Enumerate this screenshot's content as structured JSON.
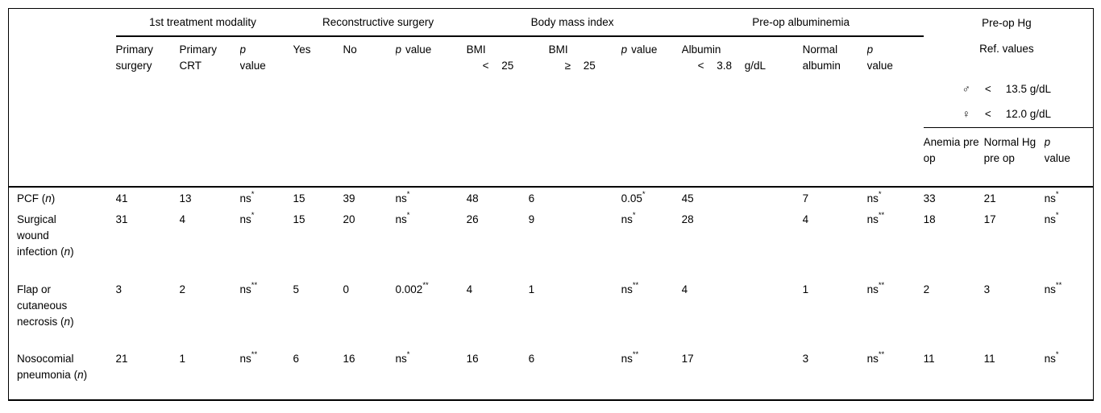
{
  "meta": {
    "background_color": "#ffffff",
    "text_color": "#000000",
    "rule_color": "#000000"
  },
  "table": {
    "groups": [
      {
        "label": "1st treatment modality"
      },
      {
        "label": "Reconstructive surgery"
      },
      {
        "label": "Body mass index"
      },
      {
        "label": "Pre-op albuminemia"
      },
      {
        "label": "Pre-op Hg"
      }
    ],
    "sub": {
      "primary_surgery": "Primary surgery",
      "primary_crt": "Primary CRT",
      "p1": {
        "p": "p",
        "value": "value"
      },
      "yes": "Yes",
      "no": "No",
      "p2": {
        "p": "p",
        "value": "value"
      },
      "bmi_lt": {
        "line1": "BMI",
        "line2": "< 25"
      },
      "bmi_ge": {
        "line1": "BMI",
        "line2": "≥ 25"
      },
      "p3": {
        "p": "p",
        "value": "value"
      },
      "albumin": {
        "line1": "Albumin",
        "line2": "< 3.8 g/dL"
      },
      "normal_albumin": "Normal albumin",
      "p4": {
        "p": "p",
        "value": "value"
      },
      "ref_values": "Ref. values",
      "male": {
        "symbol": "♂",
        "op": "<",
        "value": "13.5 g/dL"
      },
      "female": {
        "symbol": "♀",
        "op": "<",
        "value": "12.0 g/dL"
      },
      "anemia": "Anemia pre op",
      "normal_hg": "Normal Hg pre op",
      "p5": {
        "p": "p",
        "value": "value"
      }
    },
    "rows": [
      {
        "label": "PCF",
        "n": "(n)",
        "cells": [
          {
            "v": "41",
            "s": ""
          },
          {
            "v": "13",
            "s": ""
          },
          {
            "v": "ns",
            "s": "*"
          },
          {
            "v": "15",
            "s": ""
          },
          {
            "v": "39",
            "s": ""
          },
          {
            "v": "ns",
            "s": "*"
          },
          {
            "v": "48",
            "s": ""
          },
          {
            "v": "6",
            "s": ""
          },
          {
            "v": "0.05",
            "s": "*"
          },
          {
            "v": "45",
            "s": ""
          },
          {
            "v": "7",
            "s": ""
          },
          {
            "v": "ns",
            "s": "*"
          },
          {
            "v": "33",
            "s": ""
          },
          {
            "v": "21",
            "s": ""
          },
          {
            "v": "ns",
            "s": "*"
          }
        ]
      },
      {
        "label": "Surgical wound infection",
        "n": "(n)",
        "cells": [
          {
            "v": "31",
            "s": ""
          },
          {
            "v": "4",
            "s": ""
          },
          {
            "v": "ns",
            "s": "*"
          },
          {
            "v": "15",
            "s": ""
          },
          {
            "v": "20",
            "s": ""
          },
          {
            "v": "ns",
            "s": "*"
          },
          {
            "v": "26",
            "s": ""
          },
          {
            "v": "9",
            "s": ""
          },
          {
            "v": "ns",
            "s": "*"
          },
          {
            "v": "28",
            "s": ""
          },
          {
            "v": "4",
            "s": ""
          },
          {
            "v": "ns",
            "s": "**"
          },
          {
            "v": "18",
            "s": ""
          },
          {
            "v": "17",
            "s": ""
          },
          {
            "v": "ns",
            "s": "*"
          }
        ]
      },
      {
        "label": "Flap or cutaneous necrosis",
        "n": "(n)",
        "cells": [
          {
            "v": "3",
            "s": ""
          },
          {
            "v": "2",
            "s": ""
          },
          {
            "v": "ns",
            "s": "**"
          },
          {
            "v": "5",
            "s": ""
          },
          {
            "v": "0",
            "s": ""
          },
          {
            "v": "0.002",
            "s": "**"
          },
          {
            "v": "4",
            "s": ""
          },
          {
            "v": "1",
            "s": ""
          },
          {
            "v": "ns",
            "s": "**"
          },
          {
            "v": "4",
            "s": ""
          },
          {
            "v": "1",
            "s": ""
          },
          {
            "v": "ns",
            "s": "**"
          },
          {
            "v": "2",
            "s": ""
          },
          {
            "v": "3",
            "s": ""
          },
          {
            "v": "ns",
            "s": "**"
          }
        ]
      },
      {
        "label": "Nosocomial pneumonia",
        "n": "(n)",
        "cells": [
          {
            "v": "21",
            "s": ""
          },
          {
            "v": "1",
            "s": ""
          },
          {
            "v": "ns",
            "s": "**"
          },
          {
            "v": "6",
            "s": ""
          },
          {
            "v": "16",
            "s": ""
          },
          {
            "v": "ns",
            "s": "*"
          },
          {
            "v": "16",
            "s": ""
          },
          {
            "v": "6",
            "s": ""
          },
          {
            "v": "ns",
            "s": "**"
          },
          {
            "v": "17",
            "s": ""
          },
          {
            "v": "3",
            "s": ""
          },
          {
            "v": "ns",
            "s": "**"
          },
          {
            "v": "11",
            "s": ""
          },
          {
            "v": "11",
            "s": ""
          },
          {
            "v": "ns",
            "s": "*"
          }
        ]
      }
    ]
  }
}
